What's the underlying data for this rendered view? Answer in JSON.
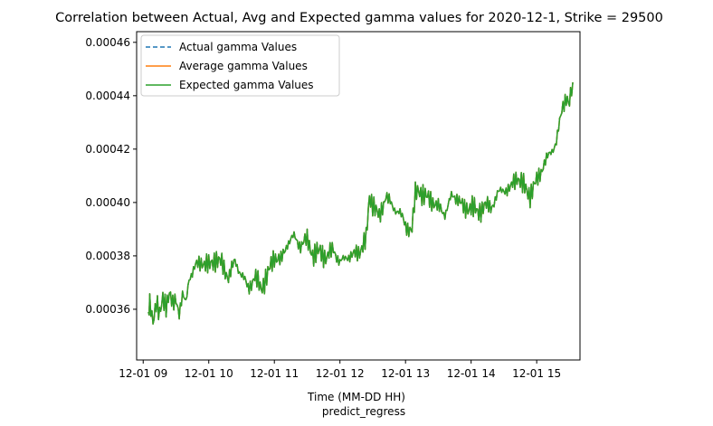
{
  "chart_data": {
    "type": "line",
    "title": "Correlation between Actual, Avg and Expected gamma values for 2020-12-1, Strike = 29500",
    "xlabel": "Time (MM-DD HH)",
    "sublabel": "predict_regress",
    "ylabel": "",
    "x_tick_labels": [
      "12-01 09",
      "12-01 10",
      "12-01 11",
      "12-01 12",
      "12-01 13",
      "12-01 14",
      "12-01 15"
    ],
    "x_tick_hours": [
      9,
      10,
      11,
      12,
      13,
      14,
      15
    ],
    "xlim_hours": [
      8.9,
      15.66
    ],
    "y_tick_labels": [
      "0.00036",
      "0.00038",
      "0.00040",
      "0.00042",
      "0.00044",
      "0.00046"
    ],
    "y_tick_values": [
      0.00036,
      0.00038,
      0.0004,
      0.00042,
      0.00044,
      0.00046
    ],
    "ylim": [
      0.000341,
      0.000464
    ],
    "grid": false,
    "legend_position": "upper-left",
    "series": [
      {
        "name": "Actual gamma Values",
        "style": "dashed",
        "color": "#1f77b4",
        "x_hours": [
          9.08,
          9.1,
          9.15,
          9.2,
          9.25,
          9.3,
          9.35,
          9.4,
          9.45,
          9.5,
          9.55,
          9.6,
          9.65,
          9.7,
          9.8,
          9.9,
          10.0,
          10.1,
          10.2,
          10.3,
          10.4,
          10.5,
          10.6,
          10.7,
          10.8,
          10.9,
          11.0,
          11.1,
          11.2,
          11.3,
          11.4,
          11.5,
          11.6,
          11.7,
          11.8,
          11.9,
          12.0,
          12.1,
          12.2,
          12.3,
          12.4,
          12.45,
          12.5,
          12.55,
          12.6,
          12.7,
          12.8,
          12.9,
          13.0,
          13.1,
          13.15,
          13.2,
          13.3,
          13.4,
          13.5,
          13.6,
          13.7,
          13.8,
          13.9,
          14.0,
          14.1,
          14.2,
          14.3,
          14.4,
          14.5,
          14.6,
          14.7,
          14.8,
          14.9,
          15.0,
          15.1,
          15.2,
          15.3,
          15.4,
          15.45,
          15.5,
          15.55
        ],
        "y": [
          0.000358,
          0.000362,
          0.000356,
          0.000363,
          0.000357,
          0.000364,
          0.000362,
          0.000366,
          0.000361,
          0.000364,
          0.000359,
          0.000365,
          0.000362,
          0.000372,
          0.000376,
          0.000378,
          0.000376,
          0.000379,
          0.000377,
          0.000372,
          0.000378,
          0.000373,
          0.000368,
          0.000372,
          0.000368,
          0.000373,
          0.00038,
          0.000378,
          0.000385,
          0.000387,
          0.000384,
          0.000386,
          0.00038,
          0.000382,
          0.000379,
          0.000383,
          0.000377,
          0.00038,
          0.00038,
          0.000382,
          0.000386,
          0.000402,
          0.0004,
          0.000397,
          0.000394,
          0.000403,
          0.000398,
          0.000397,
          0.000391,
          0.00039,
          0.000403,
          0.000405,
          0.000402,
          0.000401,
          0.000398,
          0.000396,
          0.000402,
          0.000402,
          0.000397,
          0.000399,
          0.000396,
          0.000399,
          0.000398,
          0.000403,
          0.000405,
          0.000405,
          0.00041,
          0.000406,
          0.000403,
          0.000408,
          0.000414,
          0.000418,
          0.000423,
          0.000436,
          0.00044,
          0.000437,
          0.000445
        ]
      },
      {
        "name": "Average gamma Values",
        "style": "solid",
        "color": "#ff7f0e",
        "x_hours": [
          9.08,
          9.1,
          9.15,
          9.2,
          9.25,
          9.3,
          9.35,
          9.4,
          9.45,
          9.5,
          9.55,
          9.6,
          9.65,
          9.7,
          9.8,
          9.9,
          10.0,
          10.1,
          10.2,
          10.3,
          10.4,
          10.5,
          10.6,
          10.7,
          10.8,
          10.9,
          11.0,
          11.1,
          11.2,
          11.3,
          11.4,
          11.5,
          11.6,
          11.7,
          11.8,
          11.9,
          12.0,
          12.1,
          12.2,
          12.3,
          12.4,
          12.45,
          12.5,
          12.55,
          12.6,
          12.7,
          12.8,
          12.9,
          13.0,
          13.1,
          13.15,
          13.2,
          13.3,
          13.4,
          13.5,
          13.6,
          13.7,
          13.8,
          13.9,
          14.0,
          14.1,
          14.2,
          14.3,
          14.4,
          14.5,
          14.6,
          14.7,
          14.8,
          14.9,
          15.0,
          15.1,
          15.2,
          15.3,
          15.4,
          15.45,
          15.5,
          15.55
        ],
        "y": [
          0.000358,
          0.000362,
          0.000356,
          0.000363,
          0.000357,
          0.000364,
          0.000362,
          0.000366,
          0.000361,
          0.000364,
          0.000359,
          0.000365,
          0.000362,
          0.000372,
          0.000376,
          0.000378,
          0.000376,
          0.000379,
          0.000377,
          0.000372,
          0.000378,
          0.000373,
          0.000368,
          0.000372,
          0.000368,
          0.000373,
          0.00038,
          0.000378,
          0.000385,
          0.000387,
          0.000384,
          0.000386,
          0.00038,
          0.000382,
          0.000379,
          0.000383,
          0.000377,
          0.00038,
          0.00038,
          0.000382,
          0.000386,
          0.000402,
          0.0004,
          0.000397,
          0.000394,
          0.000403,
          0.000398,
          0.000397,
          0.000391,
          0.00039,
          0.000403,
          0.000405,
          0.000402,
          0.000401,
          0.000398,
          0.000396,
          0.000402,
          0.000402,
          0.000397,
          0.000399,
          0.000396,
          0.000399,
          0.000398,
          0.000403,
          0.000405,
          0.000405,
          0.00041,
          0.000406,
          0.000403,
          0.000408,
          0.000414,
          0.000418,
          0.000423,
          0.000436,
          0.00044,
          0.000437,
          0.000445
        ]
      },
      {
        "name": "Expected gamma Values",
        "style": "solid",
        "color": "#2ca02c",
        "x_hours": [
          9.08,
          9.1,
          9.15,
          9.2,
          9.25,
          9.3,
          9.35,
          9.4,
          9.45,
          9.5,
          9.55,
          9.6,
          9.65,
          9.7,
          9.8,
          9.9,
          10.0,
          10.1,
          10.2,
          10.3,
          10.4,
          10.5,
          10.6,
          10.7,
          10.8,
          10.9,
          11.0,
          11.1,
          11.2,
          11.3,
          11.4,
          11.5,
          11.6,
          11.7,
          11.8,
          11.9,
          12.0,
          12.1,
          12.2,
          12.3,
          12.4,
          12.45,
          12.5,
          12.55,
          12.6,
          12.7,
          12.8,
          12.9,
          13.0,
          13.1,
          13.15,
          13.2,
          13.3,
          13.4,
          13.5,
          13.6,
          13.7,
          13.8,
          13.9,
          14.0,
          14.1,
          14.2,
          14.3,
          14.4,
          14.5,
          14.6,
          14.7,
          14.8,
          14.9,
          15.0,
          15.1,
          15.2,
          15.3,
          15.4,
          15.45,
          15.5,
          15.55
        ],
        "y": [
          0.000358,
          0.000362,
          0.000356,
          0.000363,
          0.000357,
          0.000364,
          0.000362,
          0.000366,
          0.000361,
          0.000364,
          0.000359,
          0.000365,
          0.000362,
          0.000372,
          0.000376,
          0.000378,
          0.000376,
          0.000379,
          0.000377,
          0.000372,
          0.000378,
          0.000373,
          0.000368,
          0.000372,
          0.000368,
          0.000373,
          0.00038,
          0.000378,
          0.000385,
          0.000387,
          0.000384,
          0.000386,
          0.00038,
          0.000382,
          0.000379,
          0.000383,
          0.000377,
          0.00038,
          0.00038,
          0.000382,
          0.000386,
          0.000402,
          0.0004,
          0.000397,
          0.000394,
          0.000403,
          0.000398,
          0.000397,
          0.000391,
          0.00039,
          0.000403,
          0.000405,
          0.000402,
          0.000401,
          0.000398,
          0.000396,
          0.000402,
          0.000402,
          0.000397,
          0.000399,
          0.000396,
          0.000399,
          0.000398,
          0.000403,
          0.000405,
          0.000405,
          0.00041,
          0.000406,
          0.000403,
          0.000408,
          0.000414,
          0.000418,
          0.000423,
          0.000436,
          0.00044,
          0.000437,
          0.000445
        ]
      }
    ]
  }
}
